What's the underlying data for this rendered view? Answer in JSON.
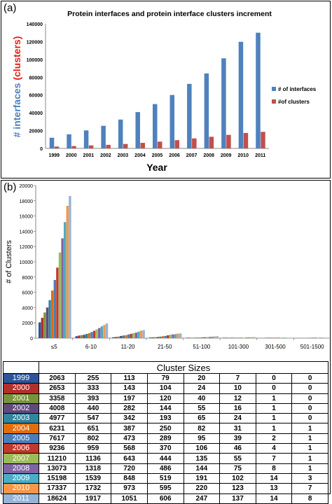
{
  "panel_a_label": "(a)",
  "panel_b_label": "(b)",
  "chart_data": [
    {
      "type": "bar",
      "title": "Protein interfaces and protein interface clusters increment",
      "xlabel": "Year",
      "ylabel_part1": "# interfaces",
      "ylabel_part2": "(clusters)",
      "categories": [
        "1999",
        "2000",
        "2001",
        "2002",
        "2003",
        "2004",
        "2005",
        "2006",
        "2007",
        "2008",
        "2009",
        "2010",
        "2011"
      ],
      "series": [
        {
          "name": "# of interfaces",
          "color": "#4f81bd",
          "values": [
            12000,
            15800,
            20200,
            25400,
            32400,
            40800,
            49800,
            60000,
            72500,
            84200,
            101200,
            119800,
            130000
          ]
        },
        {
          "name": "#of clusters",
          "color": "#c0504d",
          "values": [
            2063,
            2653,
            3358,
            4008,
            4977,
            6231,
            7617,
            9236,
            11210,
            13073,
            15198,
            17337,
            18624
          ]
        }
      ],
      "yticks": [
        "0",
        "20000",
        "40000",
        "60000",
        "80000",
        "100000",
        "120000",
        "140000"
      ],
      "ylim": [
        0,
        140000
      ],
      "legend_position": "right"
    },
    {
      "type": "bar",
      "xlabel": "Cluster Sizes",
      "ylabel": "# of Clusters",
      "categories": [
        "≤5",
        "6-10",
        "11-20",
        "21-50",
        "51-100",
        "101-300",
        "301-500",
        "501-1500"
      ],
      "yticks": [
        "0",
        "2000",
        "4000",
        "6000",
        "8000",
        "10000",
        "12000",
        "14000",
        "16000",
        "18000",
        "20000"
      ],
      "ylim": [
        0,
        20000
      ],
      "series": [
        {
          "name": "1999",
          "color": "#2e5597",
          "values": [
            2063,
            255,
            113,
            79,
            20,
            7,
            0,
            0
          ]
        },
        {
          "name": "2000",
          "color": "#b22f2c",
          "values": [
            2653,
            333,
            143,
            104,
            24,
            10,
            0,
            0
          ]
        },
        {
          "name": "2001",
          "color": "#77933c",
          "values": [
            3358,
            393,
            197,
            120,
            40,
            12,
            1,
            0
          ]
        },
        {
          "name": "2002",
          "color": "#604a7b",
          "values": [
            4008,
            440,
            282,
            144,
            55,
            16,
            1,
            0
          ]
        },
        {
          "name": "2003",
          "color": "#31859c",
          "values": [
            4977,
            547,
            342,
            193,
            65,
            24,
            1,
            0
          ]
        },
        {
          "name": "2004",
          "color": "#e46c0a",
          "values": [
            6231,
            651,
            387,
            250,
            82,
            31,
            1,
            1
          ]
        },
        {
          "name": "2005",
          "color": "#4a7ebb",
          "values": [
            7617,
            802,
            473,
            289,
            95,
            39,
            2,
            1
          ]
        },
        {
          "name": "2006",
          "color": "#c0392b",
          "values": [
            9236,
            959,
            568,
            370,
            106,
            46,
            4,
            1
          ]
        },
        {
          "name": "2007",
          "color": "#9bbb59",
          "values": [
            11210,
            1136,
            643,
            444,
            135,
            55,
            7,
            1
          ]
        },
        {
          "name": "2008",
          "color": "#8064a2",
          "values": [
            13073,
            1318,
            720,
            486,
            144,
            75,
            8,
            1
          ]
        },
        {
          "name": "2009",
          "color": "#4bacc6",
          "values": [
            15198,
            1539,
            848,
            519,
            191,
            102,
            14,
            3
          ]
        },
        {
          "name": "2010",
          "color": "#f79646",
          "values": [
            17337,
            1732,
            973,
            595,
            220,
            123,
            13,
            7
          ]
        },
        {
          "name": "2011",
          "color": "#95b3d7",
          "values": [
            18624,
            1917,
            1051,
            606,
            247,
            137,
            14,
            8
          ]
        }
      ]
    }
  ]
}
